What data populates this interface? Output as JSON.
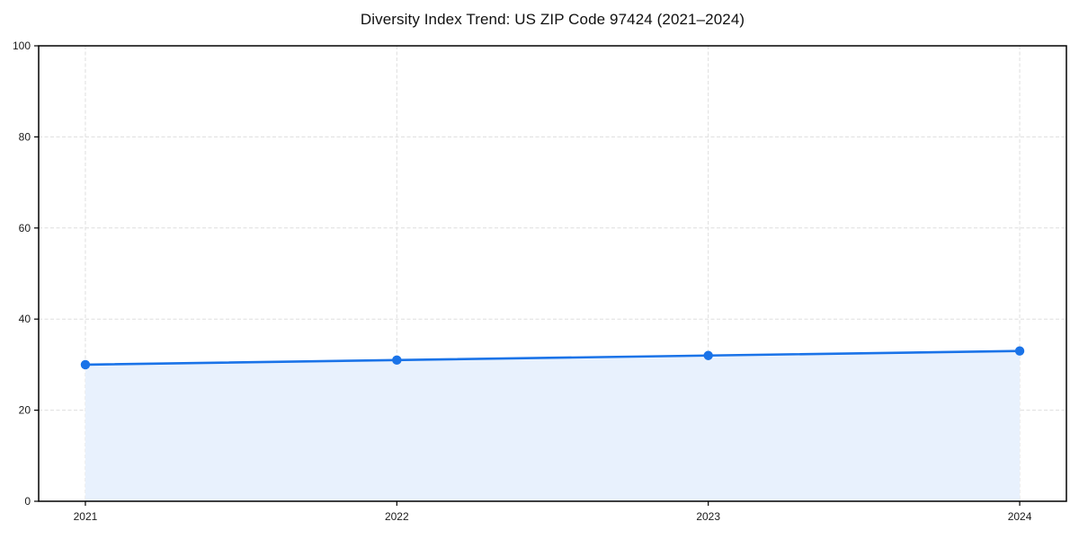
{
  "page": {
    "background_color": "#ffffff"
  },
  "chart_data": {
    "type": "area",
    "title": "Diversity Index Trend: US ZIP Code 97424 (2021–2024)",
    "categories": [
      "2021",
      "2022",
      "2023",
      "2024"
    ],
    "series": [
      {
        "name": "Diversity Index",
        "values": [
          30,
          31,
          32,
          33
        ]
      }
    ],
    "xlabel": "",
    "ylabel": "",
    "ylim": [
      0,
      100
    ],
    "yticks": [
      0,
      20,
      40,
      60,
      80,
      100
    ],
    "grid": "dashed-both-axes",
    "legend_position": "none",
    "marker_style": "circle",
    "line_color": "#1a73e8",
    "marker_color": "#1a73e8",
    "fill_color": "#e8f1fd",
    "grid_color": "#dedede",
    "axis_color": "#000000",
    "tick_label_color": "#1a1a1a",
    "title_color": "#111111"
  }
}
